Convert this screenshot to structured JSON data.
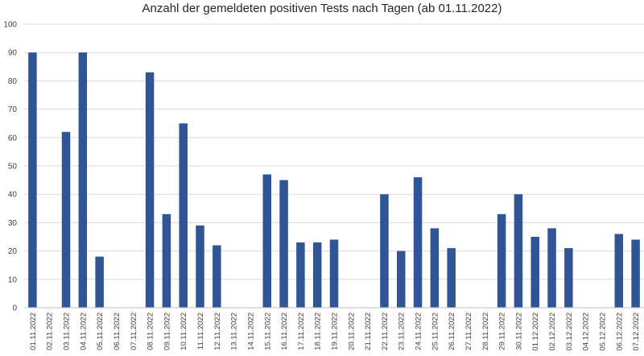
{
  "chart_data": {
    "type": "bar",
    "title": "Anzahl der gemeldeten positiven Tests nach Tagen (ab 01.11.2022)",
    "xlabel": "",
    "ylabel": "",
    "ylim": [
      0,
      100
    ],
    "yticks": [
      0,
      10,
      20,
      30,
      40,
      50,
      60,
      70,
      80,
      90,
      100
    ],
    "grid": true,
    "bar_color": "#2f5597",
    "categories": [
      "01.11.2022",
      "02.11.2022",
      "03.11.2022",
      "04.11.2022",
      "05.11.2022",
      "06.11.2022",
      "07.11.2022",
      "08.11.2022",
      "09.11.2022",
      "10.11.2022",
      "11.11.2022",
      "12.11.2022",
      "13.11.2022",
      "14.11.2022",
      "15.11.2022",
      "16.11.2022",
      "17.11.2022",
      "18.11.2022",
      "19.11.2022",
      "20.11.2022",
      "21.11.2022",
      "22.11.2022",
      "23.11.2022",
      "24.11.2022",
      "25.11.2022",
      "26.11.2022",
      "27.11.2022",
      "28.11.2022",
      "29.11.2022",
      "30.11.2022",
      "01.12.2022",
      "02.12.2022",
      "03.12.2022",
      "04.12.2022",
      "05.12.2022",
      "06.12.2022",
      "07.12.2022"
    ],
    "values": [
      90,
      0,
      62,
      90,
      18,
      0,
      0,
      83,
      33,
      65,
      29,
      22,
      0,
      0,
      47,
      45,
      23,
      23,
      24,
      0,
      0,
      40,
      20,
      46,
      28,
      21,
      0,
      0,
      33,
      40,
      25,
      28,
      21,
      0,
      0,
      26,
      24
    ]
  }
}
